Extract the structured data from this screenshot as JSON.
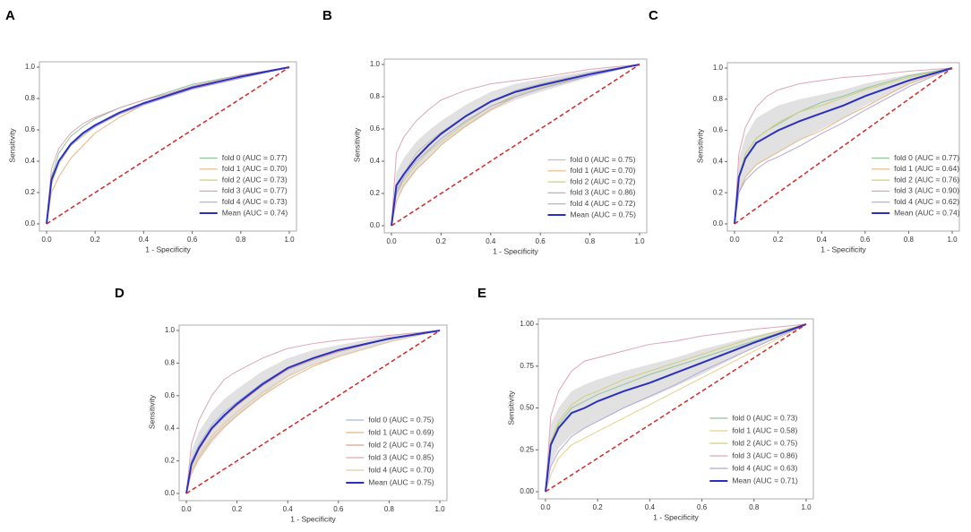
{
  "chart_data": [
    {
      "type": "line",
      "panel": "A",
      "xlabel": "1 - Specificity",
      "ylabel": "Sensitivity",
      "xlim": [
        0,
        1
      ],
      "ylim": [
        0,
        1
      ],
      "xticks": [
        {
          "value": 0,
          "label": "0.0"
        },
        0.2,
        0.4,
        0.6,
        0.8,
        {
          "value": 1,
          "label": "1.0"
        }
      ],
      "yticks": [
        {
          "value": 0,
          "label": "0.0"
        },
        0.2,
        0.4,
        0.6,
        0.8,
        {
          "value": 1,
          "label": "1.0"
        }
      ],
      "diagonal_color": "#d62728",
      "x": [
        0,
        0.02,
        0.05,
        0.1,
        0.15,
        0.2,
        0.3,
        0.4,
        0.5,
        0.6,
        0.8,
        1
      ],
      "series": [
        {
          "name": "fold 0 (AUC = 0.77)",
          "color": "#8fc49a",
          "values": [
            0,
            0.3,
            0.45,
            0.56,
            0.62,
            0.67,
            0.74,
            0.79,
            0.84,
            0.89,
            0.95,
            1
          ]
        },
        {
          "name": "fold 1 (AUC = 0.70)",
          "color": "#e8b582",
          "values": [
            0,
            0.2,
            0.3,
            0.42,
            0.5,
            0.58,
            0.68,
            0.76,
            0.81,
            0.86,
            0.93,
            1
          ]
        },
        {
          "name": "fold 2 (AUC = 0.73)",
          "color": "#cfcf78",
          "values": [
            0,
            0.25,
            0.38,
            0.5,
            0.56,
            0.62,
            0.7,
            0.77,
            0.82,
            0.86,
            0.94,
            1
          ]
        },
        {
          "name": "fold 3 (AUC = 0.77)",
          "color": "#dca6b6",
          "values": [
            0,
            0.35,
            0.48,
            0.58,
            0.64,
            0.68,
            0.74,
            0.79,
            0.83,
            0.88,
            0.95,
            1
          ]
        },
        {
          "name": "fold 4 (AUC = 0.73)",
          "color": "#b0a8d6",
          "values": [
            0,
            0.28,
            0.4,
            0.5,
            0.57,
            0.62,
            0.7,
            0.76,
            0.81,
            0.86,
            0.93,
            1
          ]
        },
        {
          "name": "Mean (AUC = 0.74)",
          "color": "#2b2fc0",
          "values": [
            0,
            0.28,
            0.4,
            0.51,
            0.58,
            0.63,
            0.71,
            0.77,
            0.82,
            0.87,
            0.94,
            1
          ]
        }
      ]
    },
    {
      "type": "line",
      "panel": "B",
      "xlabel": "1 - Specificity",
      "ylabel": "Sensitivity",
      "xlim": [
        0,
        1
      ],
      "ylim": [
        0,
        1
      ],
      "xticks": [
        {
          "value": 0,
          "label": "0.0"
        },
        0.2,
        0.4,
        0.6,
        0.8,
        {
          "value": 1,
          "label": "1.0"
        }
      ],
      "yticks": [
        {
          "value": 0,
          "label": "0.0"
        },
        0.2,
        0.4,
        0.6,
        0.8,
        {
          "value": 1,
          "label": "1.0"
        }
      ],
      "diagonal_color": "#d62728",
      "x": [
        0,
        0.02,
        0.05,
        0.1,
        0.15,
        0.2,
        0.3,
        0.4,
        0.5,
        0.6,
        0.8,
        1
      ],
      "band": {
        "color": "#c8c8c8",
        "lower": [
          0,
          0.17,
          0.24,
          0.34,
          0.42,
          0.5,
          0.61,
          0.71,
          0.78,
          0.83,
          0.92,
          1
        ],
        "upper": [
          0,
          0.33,
          0.42,
          0.52,
          0.59,
          0.65,
          0.75,
          0.83,
          0.88,
          0.91,
          0.96,
          1
        ]
      },
      "series": [
        {
          "name": "fold 0 (AUC = 0.75)",
          "color": "#c0c0c0",
          "values": [
            0,
            0.22,
            0.32,
            0.45,
            0.52,
            0.58,
            0.68,
            0.77,
            0.84,
            0.88,
            0.95,
            1
          ]
        },
        {
          "name": "fold 1 (AUC = 0.70)",
          "color": "#e8b582",
          "values": [
            0,
            0.15,
            0.25,
            0.35,
            0.42,
            0.5,
            0.62,
            0.72,
            0.8,
            0.85,
            0.93,
            1
          ]
        },
        {
          "name": "fold 2 (AUC = 0.72)",
          "color": "#cfcf78",
          "values": [
            0,
            0.2,
            0.28,
            0.38,
            0.46,
            0.52,
            0.64,
            0.74,
            0.81,
            0.86,
            0.93,
            1
          ]
        },
        {
          "name": "fold 3 (AUC = 0.86)",
          "color": "#dca6b6",
          "values": [
            0,
            0.45,
            0.55,
            0.65,
            0.72,
            0.78,
            0.84,
            0.88,
            0.9,
            0.92,
            0.97,
            1
          ]
        },
        {
          "name": "fold 4 (AUC = 0.72)",
          "color": "#b0a8d6",
          "values": [
            0,
            0.2,
            0.3,
            0.4,
            0.47,
            0.54,
            0.65,
            0.74,
            0.8,
            0.85,
            0.93,
            1
          ]
        },
        {
          "name": "Mean (AUC = 0.75)",
          "color": "#2b2fc0",
          "values": [
            0,
            0.25,
            0.32,
            0.42,
            0.5,
            0.57,
            0.68,
            0.77,
            0.83,
            0.87,
            0.94,
            1
          ]
        }
      ]
    },
    {
      "type": "line",
      "panel": "C",
      "xlabel": "1 - Specificity",
      "ylabel": "Sensitivity",
      "xlim": [
        0,
        1
      ],
      "ylim": [
        0,
        1
      ],
      "xticks": [
        {
          "value": 0,
          "label": "0.0"
        },
        0.2,
        0.4,
        0.6,
        0.8,
        {
          "value": 1,
          "label": "1.0"
        }
      ],
      "yticks": [
        {
          "value": 0,
          "label": "0.0"
        },
        0.2,
        0.4,
        0.6,
        0.8,
        {
          "value": 1,
          "label": "1.0"
        }
      ],
      "diagonal_color": "#d62728",
      "x": [
        0,
        0.02,
        0.05,
        0.1,
        0.15,
        0.2,
        0.3,
        0.4,
        0.5,
        0.6,
        0.8,
        1
      ],
      "band": {
        "color": "#c8c8c8",
        "lower": [
          0,
          0.2,
          0.3,
          0.38,
          0.42,
          0.46,
          0.54,
          0.61,
          0.68,
          0.76,
          0.89,
          1
        ],
        "upper": [
          0,
          0.42,
          0.56,
          0.68,
          0.72,
          0.76,
          0.8,
          0.83,
          0.86,
          0.9,
          0.96,
          1
        ]
      },
      "series": [
        {
          "name": "fold 0 (AUC = 0.77)",
          "color": "#8fc49a",
          "values": [
            0,
            0.3,
            0.45,
            0.55,
            0.6,
            0.64,
            0.72,
            0.78,
            0.82,
            0.87,
            0.95,
            1
          ]
        },
        {
          "name": "fold 1 (AUC = 0.64)",
          "color": "#e8b582",
          "values": [
            0,
            0.2,
            0.3,
            0.38,
            0.42,
            0.46,
            0.54,
            0.6,
            0.68,
            0.75,
            0.9,
            1
          ]
        },
        {
          "name": "fold 2 (AUC = 0.76)",
          "color": "#cfcf78",
          "values": [
            0,
            0.3,
            0.45,
            0.55,
            0.6,
            0.65,
            0.72,
            0.76,
            0.81,
            0.86,
            0.94,
            1
          ]
        },
        {
          "name": "fold 3 (AUC = 0.90)",
          "color": "#dca6b6",
          "values": [
            0,
            0.45,
            0.62,
            0.75,
            0.82,
            0.86,
            0.9,
            0.92,
            0.94,
            0.95,
            0.98,
            1
          ]
        },
        {
          "name": "fold 4 (AUC = 0.62)",
          "color": "#b0a8d6",
          "values": [
            0,
            0.2,
            0.28,
            0.35,
            0.4,
            0.43,
            0.5,
            0.58,
            0.65,
            0.73,
            0.88,
            1
          ]
        },
        {
          "name": "Mean (AUC = 0.74)",
          "color": "#2b2fc0",
          "values": [
            0,
            0.3,
            0.42,
            0.52,
            0.56,
            0.6,
            0.66,
            0.71,
            0.76,
            0.82,
            0.92,
            1
          ]
        }
      ]
    },
    {
      "type": "line",
      "panel": "D",
      "xlabel": "1 - Specificity",
      "ylabel": "Sensitivity",
      "xlim": [
        0,
        1
      ],
      "ylim": [
        0,
        1
      ],
      "xticks": [
        {
          "value": 0,
          "label": "0.0"
        },
        0.2,
        0.4,
        0.6,
        0.8,
        {
          "value": 1,
          "label": "1.0"
        }
      ],
      "yticks": [
        {
          "value": 0,
          "label": "0.0"
        },
        0.2,
        0.4,
        0.6,
        0.8,
        {
          "value": 1,
          "label": "1.0"
        }
      ],
      "diagonal_color": "#d62728",
      "x": [
        0,
        0.02,
        0.05,
        0.1,
        0.15,
        0.2,
        0.3,
        0.4,
        0.5,
        0.6,
        0.8,
        1
      ],
      "band": {
        "color": "#c8c8c8",
        "lower": [
          0,
          0.12,
          0.2,
          0.31,
          0.4,
          0.47,
          0.6,
          0.71,
          0.79,
          0.84,
          0.93,
          1
        ],
        "upper": [
          0,
          0.26,
          0.38,
          0.5,
          0.58,
          0.64,
          0.75,
          0.83,
          0.88,
          0.91,
          0.97,
          1
        ]
      },
      "series": [
        {
          "name": "fold 0 (AUC = 0.75)",
          "color": "#a8b8e0",
          "values": [
            0,
            0.2,
            0.3,
            0.42,
            0.5,
            0.56,
            0.68,
            0.77,
            0.83,
            0.87,
            0.95,
            1
          ]
        },
        {
          "name": "fold 1 (AUC = 0.69)",
          "color": "#e8b582",
          "values": [
            0,
            0.12,
            0.22,
            0.33,
            0.41,
            0.48,
            0.6,
            0.7,
            0.78,
            0.84,
            0.93,
            1
          ]
        },
        {
          "name": "fold 2 (AUC = 0.74)",
          "color": "#d9a08a",
          "values": [
            0,
            0.17,
            0.27,
            0.39,
            0.47,
            0.54,
            0.66,
            0.76,
            0.82,
            0.87,
            0.95,
            1
          ]
        },
        {
          "name": "fold 3 (AUC = 0.85)",
          "color": "#dca6b6",
          "values": [
            0,
            0.3,
            0.45,
            0.6,
            0.7,
            0.75,
            0.83,
            0.89,
            0.92,
            0.94,
            0.97,
            1
          ]
        },
        {
          "name": "fold 4 (AUC = 0.70)",
          "color": "#e6c8a0",
          "values": [
            0,
            0.14,
            0.24,
            0.35,
            0.43,
            0.5,
            0.62,
            0.72,
            0.79,
            0.84,
            0.93,
            1
          ]
        },
        {
          "name": "Mean (AUC = 0.75)",
          "color": "#2b2fc0",
          "values": [
            0,
            0.18,
            0.28,
            0.4,
            0.48,
            0.55,
            0.67,
            0.77,
            0.83,
            0.88,
            0.95,
            1
          ]
        }
      ]
    },
    {
      "type": "line",
      "panel": "E",
      "xlabel": "1 - Specificity",
      "ylabel": "Sensitivity",
      "xlim": [
        0,
        1
      ],
      "ylim": [
        0,
        1
      ],
      "xticks": [
        {
          "value": 0,
          "label": "0.0"
        },
        0.2,
        0.4,
        0.6,
        0.8,
        {
          "value": 1,
          "label": "1.0"
        }
      ],
      "yticks": [
        {
          "value": 0,
          "label": "0.00"
        },
        0.25,
        {
          "value": 0.5,
          "label": "0.50"
        },
        0.75,
        {
          "value": 1,
          "label": "1.00"
        }
      ],
      "diagonal_color": "#d62728",
      "x": [
        0,
        0.02,
        0.05,
        0.1,
        0.15,
        0.2,
        0.3,
        0.4,
        0.5,
        0.6,
        0.8,
        1
      ],
      "band": {
        "color": "#c8c8c8",
        "lower": [
          0,
          0.16,
          0.26,
          0.34,
          0.38,
          0.42,
          0.5,
          0.56,
          0.63,
          0.7,
          0.86,
          1
        ],
        "upper": [
          0,
          0.4,
          0.5,
          0.6,
          0.64,
          0.67,
          0.72,
          0.76,
          0.8,
          0.85,
          0.93,
          1
        ]
      },
      "series": [
        {
          "name": "fold 0 (AUC = 0.73)",
          "color": "#8fc49a",
          "values": [
            0,
            0.28,
            0.4,
            0.5,
            0.54,
            0.58,
            0.64,
            0.7,
            0.75,
            0.8,
            0.9,
            1
          ]
        },
        {
          "name": "fold 1 (AUC = 0.58)",
          "color": "#e6d08a",
          "values": [
            0,
            0.1,
            0.2,
            0.28,
            0.32,
            0.36,
            0.44,
            0.52,
            0.6,
            0.68,
            0.84,
            1
          ]
        },
        {
          "name": "fold 2 (AUC = 0.75)",
          "color": "#cfcf78",
          "values": [
            0,
            0.3,
            0.42,
            0.52,
            0.57,
            0.6,
            0.67,
            0.72,
            0.77,
            0.82,
            0.92,
            1
          ]
        },
        {
          "name": "fold 3 (AUC = 0.86)",
          "color": "#dca6b6",
          "values": [
            0,
            0.45,
            0.6,
            0.72,
            0.78,
            0.8,
            0.84,
            0.88,
            0.9,
            0.93,
            0.97,
            1
          ]
        },
        {
          "name": "fold 4 (AUC = 0.63)",
          "color": "#b0a8d6",
          "values": [
            0,
            0.15,
            0.24,
            0.33,
            0.38,
            0.42,
            0.5,
            0.57,
            0.64,
            0.72,
            0.86,
            1
          ]
        },
        {
          "name": "Mean (AUC = 0.71)",
          "color": "#2b2fc0",
          "values": [
            0,
            0.28,
            0.38,
            0.47,
            0.5,
            0.54,
            0.6,
            0.65,
            0.71,
            0.77,
            0.89,
            1
          ]
        }
      ]
    }
  ]
}
